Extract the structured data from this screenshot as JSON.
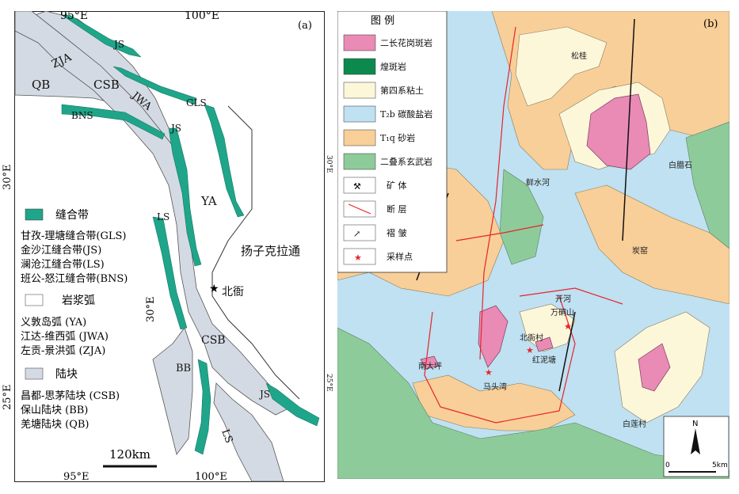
{
  "panel_a": {
    "tag": "(a)",
    "lon_top": [
      "95°E",
      "100°E"
    ],
    "lon_bottom": [
      "95°E",
      "100°E"
    ],
    "lat_left": [
      "30°E",
      "25°E"
    ],
    "lat_right": [
      "30°E",
      "25°E"
    ],
    "labels": {
      "zja": "ZJA",
      "qb": "QB",
      "csb": "CSB",
      "jwa": "JWA",
      "js_1": "JS",
      "gls": "GLS",
      "bns": "BNS",
      "js_2": "JS",
      "ya": "YA",
      "ls_1": "LS",
      "yangtze": "扬子克拉通",
      "beiya": "北衙",
      "csb_2": "CSB",
      "bb": "BB",
      "js_3": "JS",
      "ls_2": "LS"
    },
    "legend": {
      "suture_title": "缝合带",
      "suture_items": [
        "甘孜-理塘缝合带(GLS)",
        "金沙江缝合带(JS)",
        "澜沧江缝合带(LS)",
        "班公-怒江缝合带(BNS)"
      ],
      "arc_title": "岩浆弧",
      "arc_items": [
        "义敦岛弧 (YA)",
        "江达-维西弧 (JWA)",
        "左贡-景洪弧 (ZJA)"
      ],
      "block_title": "陆块",
      "block_items": [
        "昌都-思茅陆块 (CSB)",
        "保山陆块 (BB)",
        "羌塘陆块 (QB)"
      ]
    },
    "scale_label": "120km",
    "colors": {
      "suture": "#1fa58a",
      "block": "#d4dae3",
      "outline": "#333333"
    }
  },
  "panel_b": {
    "tag": "(b)",
    "legend_title": "图 例",
    "legend": [
      {
        "icon": "porphyry-swatch",
        "text": "二长花岗斑岩"
      },
      {
        "icon": "lamprophyre-swatch",
        "text": "煌斑岩"
      },
      {
        "icon": "quaternary-swatch",
        "text": "第四系粘土"
      },
      {
        "icon": "carbonate-swatch",
        "text": "T₂b 碳酸盐岩"
      },
      {
        "icon": "sandstone-swatch",
        "text": "T₁q  砂岩"
      },
      {
        "icon": "basalt-swatch",
        "text": "二叠系玄武岩"
      },
      {
        "icon": "ore-body-icon",
        "text": "矿 体"
      },
      {
        "icon": "fault-icon",
        "text": "断 层"
      },
      {
        "icon": "fold-icon",
        "text": "褶 皱"
      },
      {
        "icon": "sample-star-icon",
        "text": "采样点"
      }
    ],
    "places": {
      "songgui": "松桂",
      "baiyanshi": "白腊石",
      "xianshuihe": "鲜水河",
      "tanyao": "炭窑",
      "kaihe": "开河",
      "wanxiangshan": "万硐山",
      "beiyacun": "北衙村",
      "hongnitang": "红泥塘",
      "nandaping": "南大坪",
      "matouwan": "马头湾",
      "bailiancun": "白莲村"
    },
    "north_label": "N",
    "scale": {
      "zero": "0",
      "end": "5km"
    },
    "colors": {
      "porphyry": "#e98bb5",
      "lamprophyre": "#0c8a4e",
      "quaternary": "#fdf7da",
      "carbonate": "#bfe1f1",
      "sandstone": "#f8cf98",
      "basalt": "#8ecb9b",
      "fault": "#e8242c",
      "sample": "#e8242c"
    }
  }
}
